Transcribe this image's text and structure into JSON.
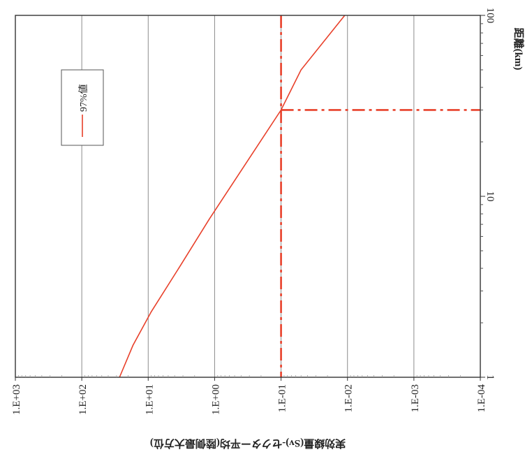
{
  "chart_data": {
    "type": "line",
    "orientation": "rotated-90",
    "x_axis": {
      "label": "実効線量(Sv)-セクター平均(陸側最大方位)",
      "scale": "log-reversed",
      "range": [
        1000,
        0.0001
      ],
      "ticks": [
        "1.E+03",
        "1.E+02",
        "1.E+01",
        "1.E+00",
        "1.E-01",
        "1.E-02",
        "1.E-03",
        "1.E-04"
      ]
    },
    "y_axis": {
      "label": "距離(km)",
      "scale": "log",
      "range": [
        1,
        100
      ],
      "ticks": [
        "1",
        "10",
        "100"
      ]
    },
    "series": [
      {
        "name": "97%値",
        "color": "#e8402a",
        "points": [
          {
            "dose": 27,
            "distance_km": 1.0
          },
          {
            "dose": 17,
            "distance_km": 1.5
          },
          {
            "dose": 9,
            "distance_km": 2.3
          },
          {
            "dose": 3.2,
            "distance_km": 4.2
          },
          {
            "dose": 1.2,
            "distance_km": 7.5
          },
          {
            "dose": 0.1,
            "distance_km": 30
          },
          {
            "dose": 0.05,
            "distance_km": 50
          },
          {
            "dose": 0.011,
            "distance_km": 100
          }
        ]
      }
    ],
    "reference_lines": [
      {
        "type": "vertical",
        "dose": 0.1,
        "color": "#e8402a",
        "style": "dash-dot"
      },
      {
        "type": "horizontal",
        "distance_km": 30,
        "dose_from": 0.1,
        "dose_to": 0.0001,
        "color": "#e8402a",
        "style": "dash-dot"
      }
    ],
    "legend": {
      "position": "top-left",
      "entries": [
        "97%値"
      ]
    },
    "grid": true
  }
}
